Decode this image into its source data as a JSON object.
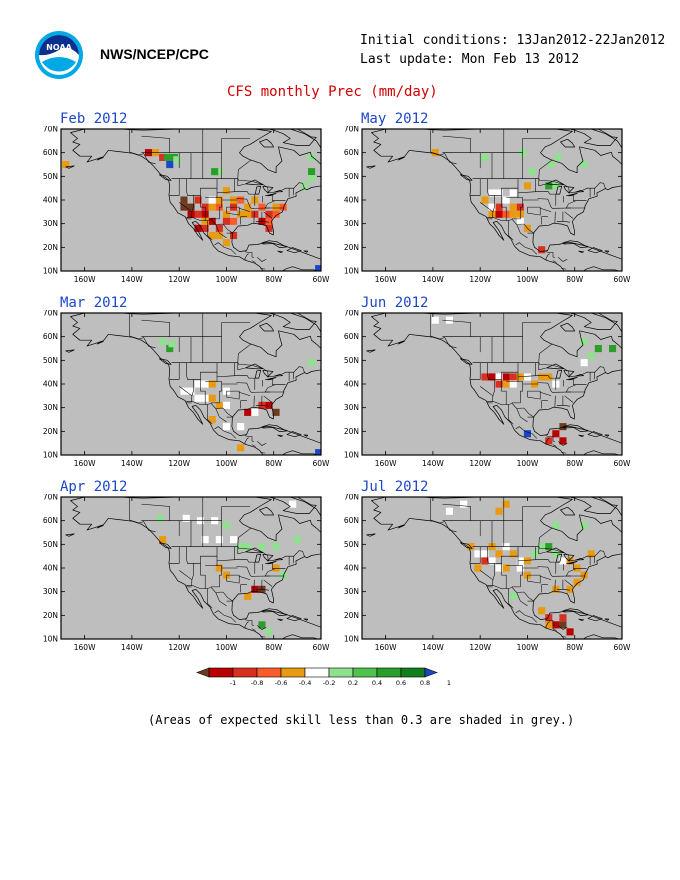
{
  "header": {
    "agency": "NWS/NCEP/CPC",
    "logo_text": "NOAA",
    "initial_conditions": "Initial conditions: 13Jan2012-22Jan2012",
    "last_update": "Last update: Mon Feb 13 2012"
  },
  "title": "CFS monthly Prec (mm/day)",
  "map": {
    "lat_labels": [
      "70N",
      "60N",
      "50N",
      "40N",
      "30N",
      "20N",
      "10N"
    ],
    "lon_labels": [
      "160W",
      "140W",
      "120W",
      "100W",
      "80W",
      "60W"
    ],
    "lon_range": [
      -170,
      -60
    ],
    "lat_range": [
      10,
      70
    ]
  },
  "colors": {
    "ocean_skill_mask": "#bebebe",
    "land": "#ffffff",
    "title": "#d40000",
    "panel_title": "#1b48c8"
  },
  "panels": [
    {
      "id": "feb",
      "title": "Feb 2012",
      "cells": [
        [
          -168,
          55,
          "#e89a10"
        ],
        [
          -133,
          60,
          "#b80000"
        ],
        [
          -130,
          60,
          "#e89a10"
        ],
        [
          -127,
          58,
          "#d83020"
        ],
        [
          -125,
          58,
          "#2a9d2a"
        ],
        [
          -122,
          58,
          "#2a9d2a"
        ],
        [
          -124,
          55,
          "#1a46c8"
        ],
        [
          -121,
          57,
          "#8fe08f"
        ],
        [
          -103,
          52,
          "#8fe08f"
        ],
        [
          -105,
          52,
          "#2a9d2a"
        ],
        [
          -118,
          37,
          "#6e3b22"
        ],
        [
          -115,
          37,
          "#6e3b22"
        ],
        [
          -118,
          40,
          "#6e3b22"
        ],
        [
          -112,
          40,
          "#d83020"
        ],
        [
          -109,
          37,
          "#d83020"
        ],
        [
          -112,
          34,
          "#d83020"
        ],
        [
          -115,
          34,
          "#b80000"
        ],
        [
          -109,
          34,
          "#b80000"
        ],
        [
          -106,
          37,
          "#e89a10"
        ],
        [
          -103,
          37,
          "#ff5a2a"
        ],
        [
          -100,
          34,
          "#e89a10"
        ],
        [
          -97,
          37,
          "#d83020"
        ],
        [
          -94,
          34,
          "#e89a10"
        ],
        [
          -100,
          31,
          "#d83020"
        ],
        [
          -106,
          31,
          "#b80000"
        ],
        [
          -109,
          28,
          "#d83020"
        ],
        [
          -112,
          28,
          "#b80000"
        ],
        [
          -106,
          25,
          "#e89a10"
        ],
        [
          -103,
          28,
          "#d83020"
        ],
        [
          -109,
          31,
          "#e89a10"
        ],
        [
          -97,
          31,
          "#ff5a2a"
        ],
        [
          -91,
          34,
          "#e89a10"
        ],
        [
          -88,
          34,
          "#d83020"
        ],
        [
          -85,
          37,
          "#ff5a2a"
        ],
        [
          -82,
          34,
          "#d83020"
        ],
        [
          -79,
          37,
          "#e89a10"
        ],
        [
          -85,
          31,
          "#b80000"
        ],
        [
          -82,
          28,
          "#d83020"
        ],
        [
          -82,
          31,
          "#ff5a2a"
        ],
        [
          -91,
          37,
          "#e89a10"
        ],
        [
          -103,
          40,
          "#e89a10"
        ],
        [
          -97,
          40,
          "#e89a10"
        ],
        [
          -106,
          40,
          "#ffffff"
        ],
        [
          -88,
          40,
          "#e89a10"
        ],
        [
          -94,
          40,
          "#ff5a2a"
        ],
        [
          -79,
          34,
          "#ff5a2a"
        ],
        [
          -103,
          25,
          "#e89a10"
        ],
        [
          -100,
          22,
          "#e89a10"
        ],
        [
          -97,
          25,
          "#d83020"
        ],
        [
          -76,
          37,
          "#ff5a2a"
        ],
        [
          -67,
          46,
          "#8fe08f"
        ],
        [
          -64,
          52,
          "#2a9d2a"
        ],
        [
          -64,
          58,
          "#8fe08f"
        ],
        [
          -64,
          49,
          "#8fe08f"
        ],
        [
          -61,
          11,
          "#1a46c8"
        ],
        [
          -100,
          44,
          "#e89a10"
        ]
      ]
    },
    {
      "id": "may",
      "title": "May 2012",
      "cells": [
        [
          -139,
          60,
          "#e89a10"
        ],
        [
          -98,
          52,
          "#8fe08f"
        ],
        [
          -102,
          60,
          "#8fe08f"
        ],
        [
          -118,
          58,
          "#8fe08f"
        ],
        [
          -87,
          58,
          "#8fe08f"
        ],
        [
          -90,
          55,
          "#8fe08f"
        ],
        [
          -76,
          55,
          "#8fe08f"
        ],
        [
          -115,
          37,
          "#ffffff"
        ],
        [
          -112,
          37,
          "#d83020"
        ],
        [
          -109,
          40,
          "#ffffff"
        ],
        [
          -115,
          34,
          "#e89a10"
        ],
        [
          -112,
          34,
          "#b80000"
        ],
        [
          -109,
          34,
          "#ff5a2a"
        ],
        [
          -106,
          37,
          "#e89a10"
        ],
        [
          -103,
          37,
          "#d83020"
        ],
        [
          -103,
          34,
          "#e89a10"
        ],
        [
          -106,
          34,
          "#e89a10"
        ],
        [
          -118,
          40,
          "#e89a10"
        ],
        [
          -115,
          43,
          "#ffffff"
        ],
        [
          -112,
          43,
          "#ffffff"
        ],
        [
          -106,
          43,
          "#ffffff"
        ],
        [
          -100,
          46,
          "#e89a10"
        ],
        [
          -103,
          31,
          "#ffffff"
        ],
        [
          -100,
          28,
          "#e89a10"
        ],
        [
          -94,
          19,
          "#d83020"
        ],
        [
          -88,
          46,
          "#8fe08f"
        ],
        [
          -91,
          46,
          "#2a9d2a"
        ]
      ]
    },
    {
      "id": "mar",
      "title": "Mar 2012",
      "cells": [
        [
          -127,
          58,
          "#8fe08f"
        ],
        [
          -124,
          55,
          "#2a9d2a"
        ],
        [
          -123,
          57,
          "#8fe08f"
        ],
        [
          -112,
          40,
          "#ffffff"
        ],
        [
          -109,
          40,
          "#ffffff"
        ],
        [
          -115,
          37,
          "#ffffff"
        ],
        [
          -106,
          40,
          "#e89a10"
        ],
        [
          -109,
          34,
          "#ffffff"
        ],
        [
          -106,
          34,
          "#e89a10"
        ],
        [
          -103,
          31,
          "#e89a10"
        ],
        [
          -100,
          31,
          "#ffffff"
        ],
        [
          -91,
          28,
          "#b80000"
        ],
        [
          -88,
          28,
          "#ffffff"
        ],
        [
          -85,
          31,
          "#d83020"
        ],
        [
          -82,
          31,
          "#b80000"
        ],
        [
          -79,
          28,
          "#6e3b22"
        ],
        [
          -106,
          25,
          "#e89a10"
        ],
        [
          -100,
          22,
          "#ffffff"
        ],
        [
          -94,
          22,
          "#ffffff"
        ],
        [
          -94,
          13,
          "#e89a10"
        ],
        [
          -64,
          49,
          "#8fe08f"
        ],
        [
          -61,
          11,
          "#1a46c8"
        ],
        [
          -100,
          37,
          "#ffffff"
        ],
        [
          -112,
          34,
          "#ffffff"
        ],
        [
          -118,
          37,
          "#ffffff"
        ]
      ]
    },
    {
      "id": "jun",
      "title": "Jun 2012",
      "cells": [
        [
          -139,
          67,
          "#ffffff"
        ],
        [
          -133,
          67,
          "#ffffff"
        ],
        [
          -76,
          58,
          "#8fe08f"
        ],
        [
          -70,
          55,
          "#2a9d2a"
        ],
        [
          -64,
          55,
          "#2a9d2a"
        ],
        [
          -73,
          52,
          "#8fe08f"
        ],
        [
          -76,
          49,
          "#ffffff"
        ],
        [
          -118,
          43,
          "#d83020"
        ],
        [
          -115,
          43,
          "#b80000"
        ],
        [
          -112,
          40,
          "#d83020"
        ],
        [
          -109,
          43,
          "#b80000"
        ],
        [
          -106,
          43,
          "#d83020"
        ],
        [
          -103,
          43,
          "#e89a10"
        ],
        [
          -100,
          43,
          "#ffffff"
        ],
        [
          -97,
          40,
          "#e89a10"
        ],
        [
          -94,
          43,
          "#e89a10"
        ],
        [
          -91,
          43,
          "#e89a10"
        ],
        [
          -88,
          40,
          "#ffffff"
        ],
        [
          -112,
          43,
          "#ffffff"
        ],
        [
          -109,
          40,
          "#e89a10"
        ],
        [
          -106,
          40,
          "#ffffff"
        ],
        [
          -85,
          22,
          "#6e3b22"
        ],
        [
          -88,
          19,
          "#b80000"
        ],
        [
          -91,
          16,
          "#d83020"
        ],
        [
          -100,
          19,
          "#1a46c8"
        ],
        [
          -85,
          16,
          "#b80000"
        ]
      ]
    },
    {
      "id": "apr",
      "title": "Apr 2012",
      "cells": [
        [
          -117,
          61,
          "#ffffff"
        ],
        [
          -111,
          60,
          "#ffffff"
        ],
        [
          -105,
          60,
          "#ffffff"
        ],
        [
          -128,
          61,
          "#8fe08f"
        ],
        [
          -100,
          58,
          "#8fe08f"
        ],
        [
          -72,
          67,
          "#ffffff"
        ],
        [
          -127,
          52,
          "#e89a10"
        ],
        [
          -109,
          52,
          "#ffffff"
        ],
        [
          -103,
          52,
          "#ffffff"
        ],
        [
          -97,
          52,
          "#ffffff"
        ],
        [
          -94,
          49,
          "#8fe08f"
        ],
        [
          -91,
          49,
          "#8fe08f"
        ],
        [
          -85,
          49,
          "#8fe08f"
        ],
        [
          -79,
          49,
          "#8fe08f"
        ],
        [
          -103,
          40,
          "#e89a10"
        ],
        [
          -100,
          37,
          "#e89a10"
        ],
        [
          -88,
          31,
          "#b80000"
        ],
        [
          -85,
          31,
          "#6e3b22"
        ],
        [
          -91,
          28,
          "#e89a10"
        ],
        [
          -79,
          40,
          "#e89a10"
        ],
        [
          -76,
          37,
          "#8fe08f"
        ],
        [
          -85,
          16,
          "#2a9d2a"
        ],
        [
          -82,
          13,
          "#8fe08f"
        ],
        [
          -70,
          52,
          "#8fe08f"
        ]
      ]
    },
    {
      "id": "jul",
      "title": "Jul 2012",
      "cells": [
        [
          -109,
          67,
          "#e89a10"
        ],
        [
          -112,
          64,
          "#e89a10"
        ],
        [
          -127,
          67,
          "#ffffff"
        ],
        [
          -133,
          64,
          "#ffffff"
        ],
        [
          -76,
          58,
          "#8fe08f"
        ],
        [
          -88,
          58,
          "#8fe08f"
        ],
        [
          -124,
          49,
          "#e89a10"
        ],
        [
          -121,
          46,
          "#ffffff"
        ],
        [
          -118,
          46,
          "#ffffff"
        ],
        [
          -115,
          49,
          "#e89a10"
        ],
        [
          -112,
          46,
          "#e89a10"
        ],
        [
          -109,
          49,
          "#ffffff"
        ],
        [
          -106,
          46,
          "#e89a10"
        ],
        [
          -103,
          43,
          "#ffffff"
        ],
        [
          -100,
          43,
          "#e89a10"
        ],
        [
          -118,
          43,
          "#d83020"
        ],
        [
          -115,
          43,
          "#ffffff"
        ],
        [
          -112,
          40,
          "#ffffff"
        ],
        [
          -109,
          40,
          "#e89a10"
        ],
        [
          -121,
          40,
          "#e89a10"
        ],
        [
          -103,
          40,
          "#ffffff"
        ],
        [
          -100,
          37,
          "#e89a10"
        ],
        [
          -97,
          46,
          "#8fe08f"
        ],
        [
          -94,
          49,
          "#8fe08f"
        ],
        [
          -91,
          49,
          "#2a9d2a"
        ],
        [
          -88,
          46,
          "#8fe08f"
        ],
        [
          -85,
          43,
          "#ffffff"
        ],
        [
          -82,
          43,
          "#e89a10"
        ],
        [
          -79,
          40,
          "#e89a10"
        ],
        [
          -76,
          37,
          "#e89a10"
        ],
        [
          -79,
          34,
          "#e89a10"
        ],
        [
          -82,
          31,
          "#e89a10"
        ],
        [
          -88,
          31,
          "#e89a10"
        ],
        [
          -73,
          46,
          "#e89a10"
        ],
        [
          -106,
          28,
          "#8fe08f"
        ],
        [
          -94,
          22,
          "#e89a10"
        ],
        [
          -91,
          19,
          "#d83020"
        ],
        [
          -88,
          16,
          "#b80000"
        ],
        [
          -85,
          16,
          "#6e3b22"
        ],
        [
          -82,
          13,
          "#b80000"
        ],
        [
          -91,
          16,
          "#e89a10"
        ],
        [
          -85,
          19,
          "#d83020"
        ]
      ]
    }
  ],
  "legend": {
    "labels": [
      "-1",
      "-0.8",
      "-0.6",
      "-0.4",
      "-0.2",
      "0.2",
      "0.4",
      "0.6",
      "0.8",
      "1"
    ],
    "colors": [
      "#6e3b22",
      "#b80000",
      "#d83020",
      "#ff5a2a",
      "#e89a10",
      "#ffffff",
      "#8fe08f",
      "#4fc24f",
      "#2a9d2a",
      "#12801a",
      "#1a46c8"
    ]
  },
  "footnote": "(Areas of expected skill less than 0.3 are shaded in grey.)"
}
